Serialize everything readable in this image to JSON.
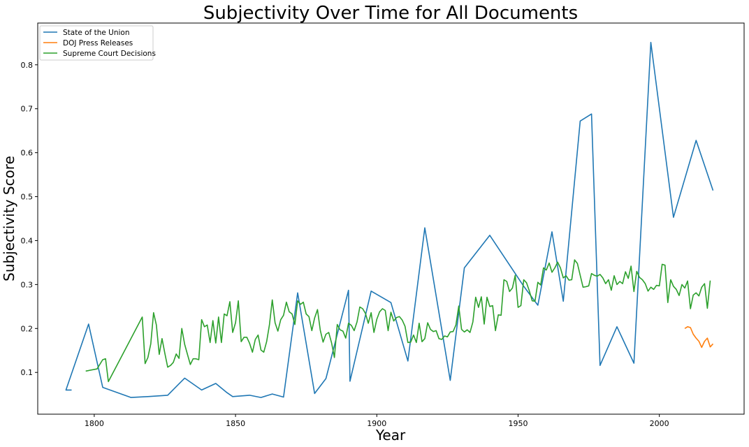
{
  "chart_data": {
    "type": "line",
    "title": "Subjectivity Over Time for All Documents",
    "xlabel": "Year",
    "ylabel": "Subjectivity Score",
    "xlim": [
      1780,
      2030
    ],
    "ylim": [
      0.005,
      0.895
    ],
    "xticks": [
      1800,
      1850,
      1900,
      1950,
      2000
    ],
    "yticks": [
      0.1,
      0.2,
      0.3,
      0.4,
      0.5,
      0.6,
      0.7,
      0.8
    ],
    "grid": false,
    "legend": {
      "position": "top-left"
    },
    "series": [
      {
        "name": "State of the Union",
        "color": "#1f77b4",
        "x": [
          1792,
          1790,
          1798,
          1803,
          1813,
          1819,
          1826,
          1832,
          1838,
          1843,
          1847,
          1849,
          1855,
          1859,
          1863,
          1867,
          1872,
          1878,
          1882,
          1890,
          1890.5,
          1898,
          1905,
          1911,
          1917,
          1926,
          1931,
          1940,
          1952,
          1957,
          1962,
          1966,
          1972,
          1976,
          1979,
          1985,
          1991,
          1997,
          2005,
          2013,
          2019
        ],
        "y": [
          0.06,
          0.06,
          0.21,
          0.066,
          0.043,
          0.045,
          0.048,
          0.087,
          0.06,
          0.075,
          0.054,
          0.045,
          0.048,
          0.043,
          0.051,
          0.044,
          0.281,
          0.052,
          0.086,
          0.287,
          0.08,
          0.285,
          0.259,
          0.126,
          0.429,
          0.082,
          0.338,
          0.412,
          0.296,
          0.253,
          0.42,
          0.262,
          0.672,
          0.688,
          0.116,
          0.204,
          0.121,
          0.851,
          0.453,
          0.628,
          0.514
        ]
      },
      {
        "name": "DOJ Press Releases",
        "color": "#ff7f0e",
        "x": [
          2009,
          2010,
          2011,
          2012,
          2013,
          2014,
          2015,
          2016,
          2017,
          2018,
          2019
        ],
        "y": [
          0.2,
          0.204,
          0.202,
          0.187,
          0.178,
          0.171,
          0.157,
          0.171,
          0.178,
          0.158,
          0.165
        ]
      },
      {
        "name": "Supreme Court Decisions",
        "color": "#2ca02c",
        "x": [
          1797,
          1801,
          1803,
          1804,
          1805,
          1817,
          1818,
          1819,
          1820,
          1821,
          1822,
          1823,
          1824,
          1825,
          1826,
          1827,
          1828,
          1829,
          1830,
          1831,
          1832,
          1833,
          1834,
          1835,
          1836,
          1837,
          1838,
          1839,
          1840,
          1841,
          1842,
          1843,
          1844,
          1845,
          1846,
          1847,
          1848,
          1849,
          1850,
          1851,
          1852,
          1853,
          1854,
          1855,
          1856,
          1857,
          1858,
          1859,
          1860,
          1861,
          1862,
          1863,
          1864,
          1865,
          1866,
          1867,
          1868,
          1869,
          1870,
          1871,
          1872,
          1873,
          1874,
          1875,
          1876,
          1877,
          1878,
          1879,
          1880,
          1881,
          1882,
          1883,
          1884,
          1885,
          1886,
          1887,
          1888,
          1889,
          1890,
          1891,
          1892,
          1893,
          1894,
          1895,
          1896,
          1897,
          1898,
          1899,
          1900,
          1901,
          1902,
          1903,
          1904,
          1905,
          1906,
          1907,
          1908,
          1909,
          1910,
          1911,
          1912,
          1913,
          1914,
          1915,
          1916,
          1917,
          1918,
          1919,
          1920,
          1921,
          1922,
          1923,
          1924,
          1925,
          1926,
          1927,
          1928,
          1929,
          1930,
          1931,
          1932,
          1933,
          1934,
          1935,
          1936,
          1937,
          1938,
          1939,
          1940,
          1941,
          1942,
          1943,
          1944,
          1945,
          1946,
          1947,
          1948,
          1949,
          1950,
          1951,
          1952,
          1953,
          1954,
          1955,
          1956,
          1957,
          1958,
          1959,
          1960,
          1961,
          1962,
          1963,
          1964,
          1965,
          1966,
          1967,
          1968,
          1969,
          1970,
          1971,
          1972,
          1973,
          1974,
          1975,
          1976,
          1977,
          1978,
          1979,
          1980,
          1981,
          1982,
          1983,
          1984,
          1985,
          1986,
          1987,
          1988,
          1989,
          1990,
          1991,
          1992,
          1993,
          1994,
          1995,
          1996,
          1997,
          1998,
          1999,
          2000,
          2001,
          2002,
          2003,
          2004,
          2005,
          2006,
          2007,
          2008,
          2009,
          2010,
          2011,
          2012,
          2013,
          2014,
          2015,
          2016,
          2017,
          2018
        ],
        "y": [
          0.103,
          0.108,
          0.129,
          0.131,
          0.079,
          0.226,
          0.12,
          0.134,
          0.165,
          0.236,
          0.208,
          0.141,
          0.177,
          0.143,
          0.112,
          0.116,
          0.123,
          0.142,
          0.132,
          0.2,
          0.164,
          0.141,
          0.118,
          0.131,
          0.131,
          0.129,
          0.22,
          0.204,
          0.208,
          0.168,
          0.218,
          0.167,
          0.226,
          0.168,
          0.233,
          0.229,
          0.261,
          0.191,
          0.213,
          0.263,
          0.17,
          0.18,
          0.18,
          0.166,
          0.146,
          0.175,
          0.185,
          0.151,
          0.146,
          0.17,
          0.208,
          0.265,
          0.213,
          0.194,
          0.22,
          0.23,
          0.26,
          0.238,
          0.233,
          0.209,
          0.263,
          0.255,
          0.26,
          0.233,
          0.227,
          0.195,
          0.224,
          0.243,
          0.196,
          0.169,
          0.187,
          0.191,
          0.167,
          0.134,
          0.209,
          0.197,
          0.194,
          0.178,
          0.212,
          0.207,
          0.195,
          0.215,
          0.249,
          0.245,
          0.234,
          0.212,
          0.236,
          0.191,
          0.221,
          0.238,
          0.245,
          0.241,
          0.195,
          0.237,
          0.217,
          0.225,
          0.227,
          0.219,
          0.205,
          0.168,
          0.169,
          0.185,
          0.168,
          0.212,
          0.17,
          0.177,
          0.213,
          0.198,
          0.193,
          0.195,
          0.177,
          0.175,
          0.183,
          0.181,
          0.192,
          0.193,
          0.208,
          0.251,
          0.198,
          0.192,
          0.197,
          0.191,
          0.215,
          0.271,
          0.248,
          0.272,
          0.21,
          0.271,
          0.25,
          0.252,
          0.195,
          0.231,
          0.23,
          0.311,
          0.307,
          0.284,
          0.292,
          0.321,
          0.248,
          0.252,
          0.311,
          0.304,
          0.285,
          0.263,
          0.262,
          0.305,
          0.299,
          0.338,
          0.333,
          0.349,
          0.328,
          0.338,
          0.351,
          0.338,
          0.315,
          0.32,
          0.31,
          0.311,
          0.356,
          0.348,
          0.321,
          0.294,
          0.295,
          0.297,
          0.325,
          0.321,
          0.319,
          0.323,
          0.315,
          0.302,
          0.311,
          0.287,
          0.32,
          0.3,
          0.307,
          0.302,
          0.329,
          0.314,
          0.342,
          0.284,
          0.33,
          0.316,
          0.311,
          0.302,
          0.285,
          0.294,
          0.289,
          0.298,
          0.297,
          0.346,
          0.344,
          0.259,
          0.311,
          0.296,
          0.289,
          0.275,
          0.3,
          0.292,
          0.308,
          0.245,
          0.276,
          0.281,
          0.274,
          0.294,
          0.302,
          0.246,
          0.309
        ]
      }
    ]
  }
}
